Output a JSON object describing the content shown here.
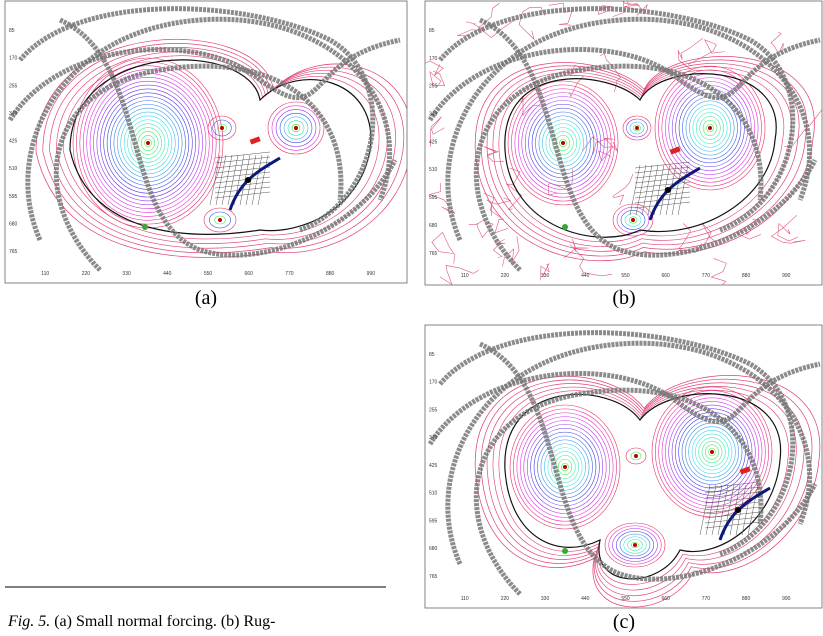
{
  "axis": {
    "x_ticks": [
      110,
      220,
      330,
      440,
      550,
      660,
      770,
      880,
      990
    ],
    "y_ticks": [
      85,
      170,
      255,
      340,
      425,
      510,
      595,
      680,
      765
    ]
  },
  "panels": [
    {
      "label": "(a)"
    },
    {
      "label": "(b)"
    },
    {
      "label": "(c)"
    }
  ],
  "caption": {
    "label": "Fig. 5.",
    "text": "(a) Small normal forcing. (b) Rug-"
  }
}
